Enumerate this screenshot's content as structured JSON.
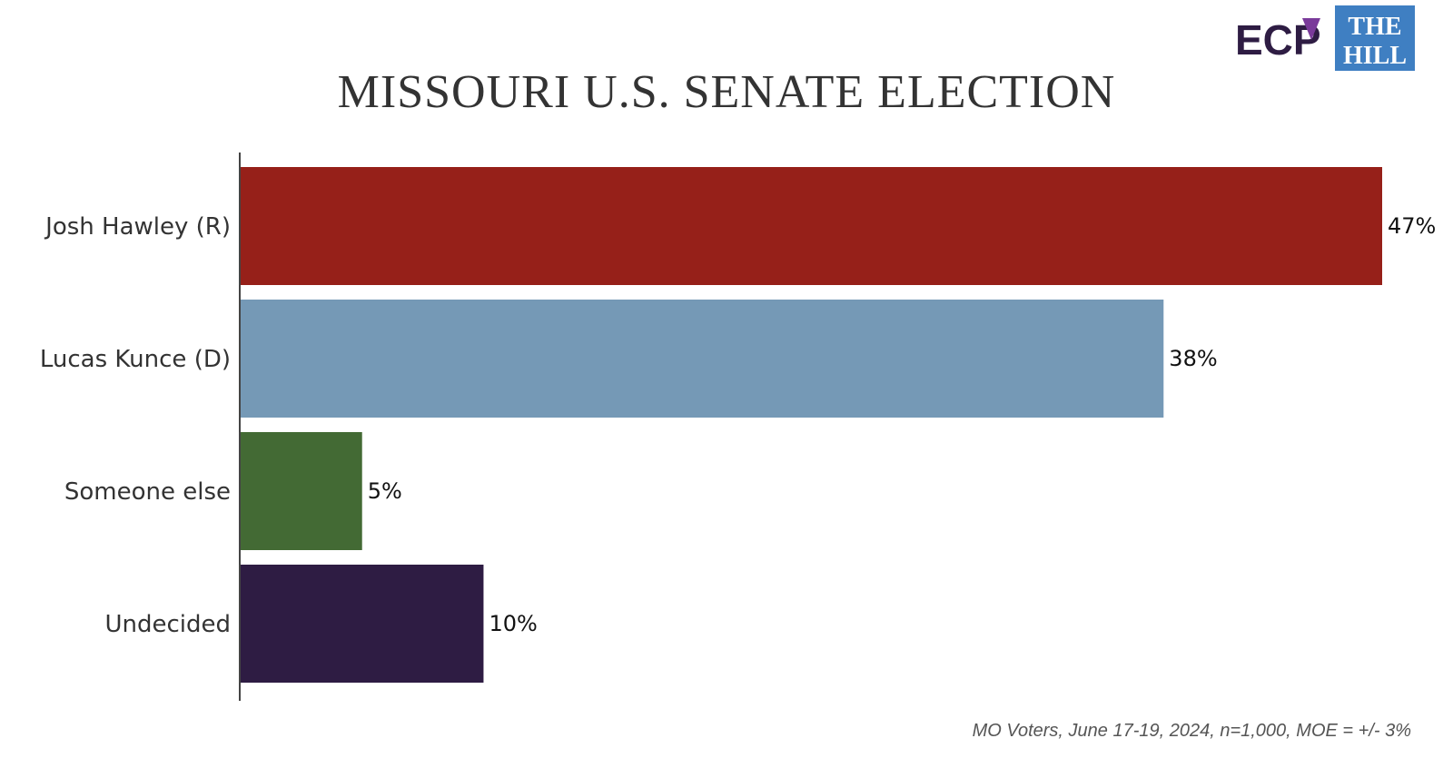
{
  "header": {
    "logo_ecp": "ECP",
    "logo_hill_line1": "THE",
    "logo_hill_line2": "HILL"
  },
  "chart_data": {
    "type": "bar",
    "orientation": "horizontal",
    "title": "MISSOURI U.S. SENATE ELECTION",
    "categories": [
      "Josh Hawley (R)",
      "Lucas Kunce (D)",
      "Someone else",
      "Undecided"
    ],
    "values": [
      47,
      38,
      5,
      10
    ],
    "value_labels": [
      "47%",
      "38%",
      "5%",
      "10%"
    ],
    "colors": [
      "#962019",
      "#7599b6",
      "#436a34",
      "#2e1c43"
    ],
    "xlim": [
      0,
      47
    ],
    "grid": false,
    "legend": "none",
    "footnote": "MO Voters, June 17-19, 2024, n=1,000, MOE = +/- 3%"
  }
}
